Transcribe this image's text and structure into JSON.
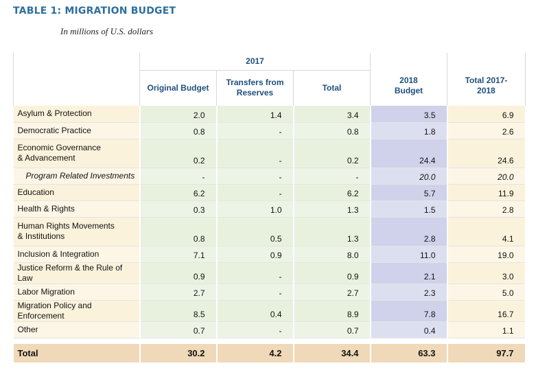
{
  "title": "TABLE 1: MIGRATION BUDGET",
  "subtitle": "In millions of U.S. dollars",
  "headers": {
    "group_2017": "2017",
    "original_budget": "Original Budget",
    "transfers_from_reserves": "Transfers from Reserves",
    "total": "Total",
    "budget_2018": "2018 Budget",
    "total_2017_2018": "Total 2017-2018"
  },
  "rows": [
    {
      "label": "Asylum & Protection",
      "original": "2.0",
      "transfers": "1.4",
      "total": "3.4",
      "b2018": "3.5",
      "grand": "6.9"
    },
    {
      "label": "Democratic Practice",
      "original": "0.8",
      "transfers": "-",
      "total": "0.8",
      "b2018": "1.8",
      "grand": "2.6"
    },
    {
      "label": "Economic Governance & Advancement",
      "original": "0.2",
      "transfers": "-",
      "total": "0.2",
      "b2018": "24.4",
      "grand": "24.6"
    },
    {
      "label": "Program Related Investments",
      "original": "-",
      "transfers": "-",
      "total": "-",
      "b2018": "20.0",
      "grand": "20.0"
    },
    {
      "label": "Education",
      "original": "6.2",
      "transfers": "-",
      "total": "6.2",
      "b2018": "5.7",
      "grand": "11.9"
    },
    {
      "label": "Health & Rights",
      "original": "0.3",
      "transfers": "1.0",
      "total": "1.3",
      "b2018": "1.5",
      "grand": "2.8"
    },
    {
      "label": "Human Rights Movements & Institutions",
      "original": "0.8",
      "transfers": "0.5",
      "total": "1.3",
      "b2018": "2.8",
      "grand": "4.1"
    },
    {
      "label": "Inclusion & Integration",
      "original": "7.1",
      "transfers": "0.9",
      "total": "8.0",
      "b2018": "11.0",
      "grand": "19.0"
    },
    {
      "label": "Justice Reform & the Rule of Law",
      "original": "0.9",
      "transfers": "-",
      "total": "0.9",
      "b2018": "2.1",
      "grand": "3.0"
    },
    {
      "label": "Labor Migration",
      "original": "2.7",
      "transfers": "-",
      "total": "2.7",
      "b2018": "2.3",
      "grand": "5.0"
    },
    {
      "label": "Migration Policy and Enforcement",
      "original": "8.5",
      "transfers": "0.4",
      "total": "8.9",
      "b2018": "7.8",
      "grand": "16.7"
    },
    {
      "label": "Other",
      "original": "0.7",
      "transfers": "-",
      "total": "0.7",
      "b2018": "0.4",
      "grand": "1.1"
    }
  ],
  "total_row": {
    "label": "Total",
    "original": "30.2",
    "transfers": "4.2",
    "total": "34.4",
    "b2018": "63.3",
    "grand": "97.7"
  },
  "colors": {
    "title": "#2e6f9e",
    "header_text": "#1f4f7e",
    "label_bg": "#fbf2dc",
    "green_bg": "#e8f1de",
    "blue_bg": "#cfd2ea",
    "total_bg": "#f0d9b8"
  }
}
